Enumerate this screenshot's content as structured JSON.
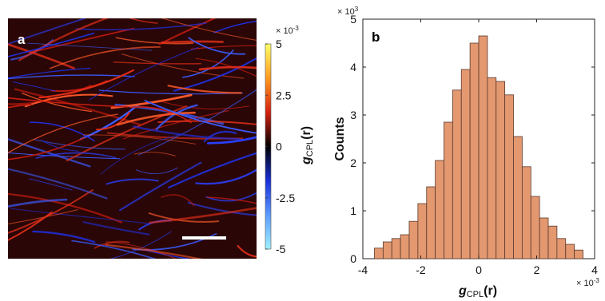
{
  "panel_a": {
    "label": "a",
    "colorbar": {
      "multiplier": "× 10",
      "multiplier_exp": "-3",
      "ticks": [
        "5",
        "2.5",
        "0",
        "-2.5",
        "-5"
      ],
      "tick_values": [
        5,
        2.5,
        0,
        -2.5,
        -5
      ],
      "label_g": "g",
      "label_sub": "CPL",
      "label_r": "(r)",
      "colormap": [
        "#ffff66",
        "#ff9a1f",
        "#d42010",
        "#000000",
        "#1a2fd8",
        "#5c9bff",
        "#9ff0ff"
      ]
    },
    "image": {
      "background": "#2a0606",
      "scale_bar_color": "#ffffff",
      "description_colors": {
        "positive": "#e8301a",
        "negative": "#2a40ff"
      }
    }
  },
  "panel_b": {
    "label": "b",
    "y_multiplier": "× 10",
    "y_multiplier_exp": "3",
    "x_multiplier": "× 10",
    "x_multiplier_exp": "-3",
    "ylabel": "Counts",
    "xlabel_g": "g",
    "xlabel_sub": "CPL",
    "xlabel_r": "(r)",
    "bar_color": "#e39870",
    "bar_edge": "#5a3a2c"
  },
  "chart_data": {
    "type": "bar",
    "title": "",
    "xlabel": "gCPL(r)",
    "ylabel": "Counts",
    "x_units": "× 10^-3",
    "y_units": "× 10^3",
    "xlim": [
      -4,
      4
    ],
    "ylim": [
      0,
      5
    ],
    "x_ticks": [
      -4,
      -2,
      0,
      2,
      4
    ],
    "y_ticks": [
      0,
      1,
      2,
      3,
      4,
      5
    ],
    "bin_width": 0.3,
    "bin_centers": [
      -3.45,
      -3.15,
      -2.85,
      -2.55,
      -2.25,
      -1.95,
      -1.65,
      -1.35,
      -1.05,
      -0.75,
      -0.45,
      -0.15,
      0.15,
      0.45,
      0.75,
      1.05,
      1.35,
      1.65,
      1.95,
      2.25,
      2.55,
      2.85,
      3.15,
      3.45
    ],
    "values": [
      0.22,
      0.35,
      0.42,
      0.5,
      0.78,
      1.15,
      1.5,
      2.05,
      2.85,
      3.52,
      3.95,
      4.5,
      4.65,
      3.78,
      3.7,
      3.42,
      2.55,
      1.92,
      1.3,
      0.85,
      0.68,
      0.42,
      0.3,
      0.18
    ],
    "grid": false,
    "legend": "none"
  }
}
